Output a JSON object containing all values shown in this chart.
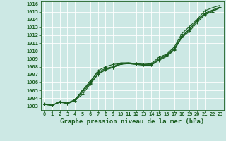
{
  "title": "Graphe pression niveau de la mer (hPa)",
  "xlim": [
    -0.5,
    23.5
  ],
  "ylim": [
    1002.5,
    1016.3
  ],
  "yticks": [
    1003,
    1004,
    1005,
    1006,
    1007,
    1008,
    1009,
    1010,
    1011,
    1012,
    1013,
    1014,
    1015,
    1016
  ],
  "xticks": [
    0,
    1,
    2,
    3,
    4,
    5,
    6,
    7,
    8,
    9,
    10,
    11,
    12,
    13,
    14,
    15,
    16,
    17,
    18,
    19,
    20,
    21,
    22,
    23
  ],
  "bg_color": "#cce8e4",
  "grid_color": "#ffffff",
  "line_color": "#1a5e20",
  "line_width": 0.8,
  "marker": "+",
  "marker_size": 3,
  "marker_edge_width": 0.7,
  "title_fontsize": 6.5,
  "tick_fontsize": 5.0,
  "series": [
    [
      1003.2,
      1003.1,
      1003.5,
      1003.4,
      1003.8,
      1005.0,
      1006.0,
      1007.5,
      1008.0,
      1008.3,
      1008.4,
      1008.5,
      1008.4,
      1008.3,
      1008.4,
      1009.2,
      1009.6,
      1010.5,
      1012.2,
      1013.1,
      1014.0,
      1015.1,
      1015.5,
      1015.8
    ],
    [
      1003.2,
      1003.1,
      1003.5,
      1003.4,
      1003.8,
      1005.0,
      1006.2,
      1007.3,
      1007.8,
      1008.0,
      1008.5,
      1008.5,
      1008.4,
      1008.3,
      1008.3,
      1009.0,
      1009.5,
      1010.3,
      1011.9,
      1012.8,
      1013.9,
      1014.8,
      1015.2,
      1015.6
    ],
    [
      1003.2,
      1003.1,
      1003.5,
      1003.3,
      1003.7,
      1004.8,
      1005.9,
      1007.1,
      1007.7,
      1007.9,
      1008.4,
      1008.4,
      1008.3,
      1008.2,
      1008.2,
      1008.9,
      1009.4,
      1010.2,
      1011.8,
      1012.7,
      1013.8,
      1014.7,
      1015.1,
      1015.5
    ],
    [
      1003.3,
      1003.1,
      1003.6,
      1003.3,
      1003.7,
      1004.5,
      1005.8,
      1007.0,
      1007.6,
      1007.9,
      1008.3,
      1008.4,
      1008.3,
      1008.2,
      1008.2,
      1008.8,
      1009.3,
      1010.1,
      1011.7,
      1012.5,
      1013.6,
      1014.6,
      1015.0,
      1015.5
    ]
  ]
}
